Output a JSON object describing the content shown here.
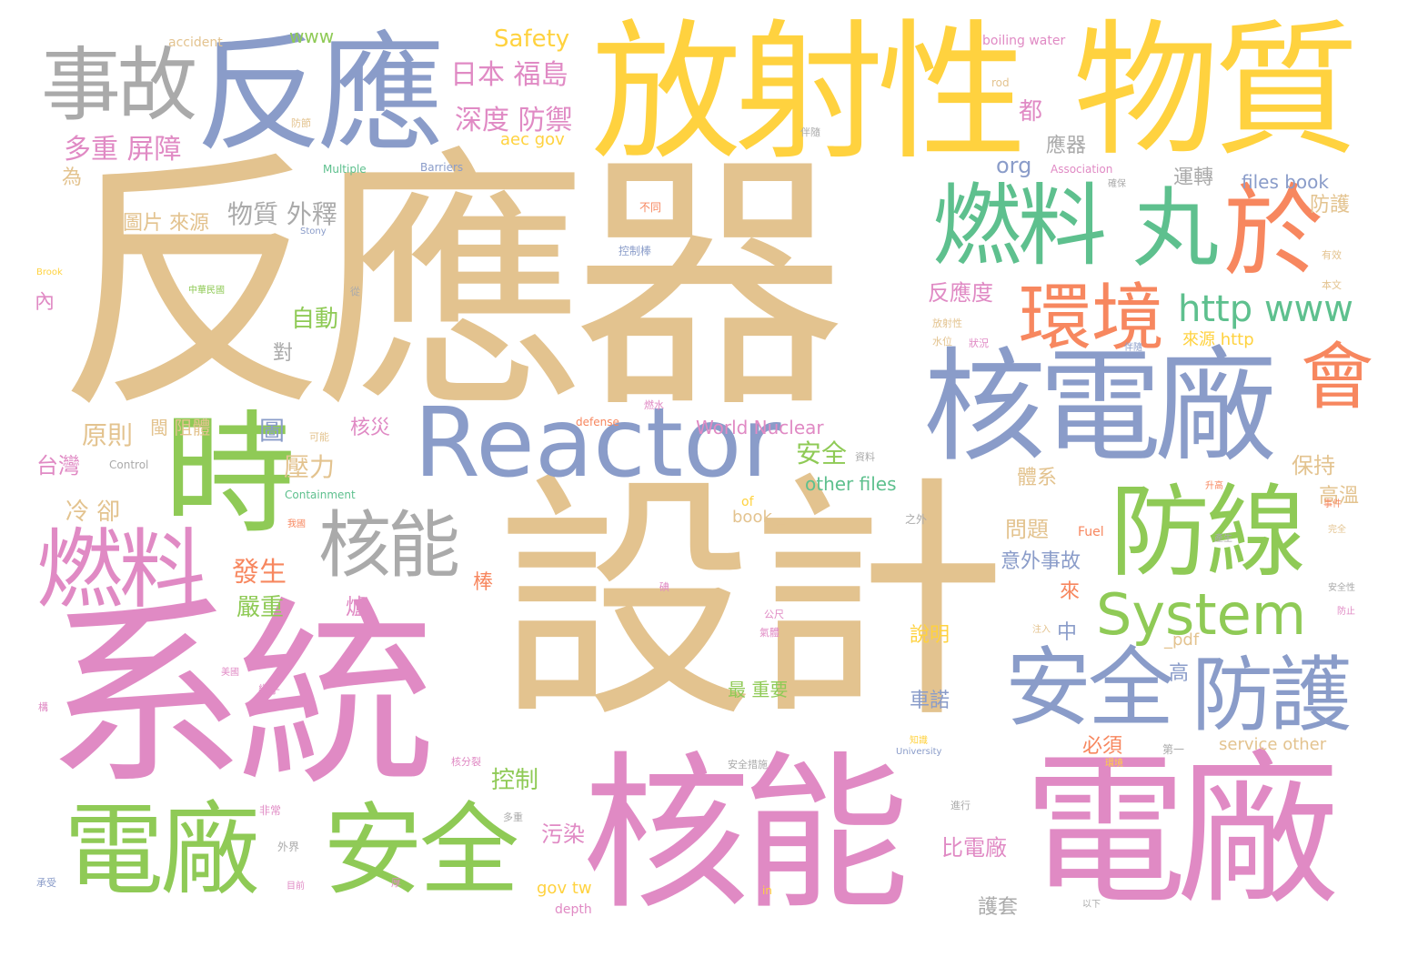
{
  "colors": {
    "tan": "#e3c38f",
    "blue": "#8a9cc9",
    "yellow": "#ffd23f",
    "pink": "#e08ac4",
    "green": "#8fca56",
    "gray": "#aaaaaa",
    "orange": "#f7875f",
    "teal": "#5ec08e"
  },
  "words": [
    {
      "text": "反應器",
      "color": "tan"
    },
    {
      "text": "設計",
      "color": "tan"
    },
    {
      "text": "系統",
      "color": "pink"
    },
    {
      "text": "放射性",
      "color": "yellow"
    },
    {
      "text": "物質",
      "color": "yellow"
    },
    {
      "text": "核能",
      "color": "pink"
    },
    {
      "text": "電廠",
      "color": "pink"
    },
    {
      "text": "反應",
      "color": "blue"
    },
    {
      "text": "核電廠",
      "color": "blue"
    },
    {
      "text": "Reactor",
      "color": "blue"
    },
    {
      "text": "時",
      "color": "green"
    },
    {
      "text": "電廠",
      "color": "green"
    },
    {
      "text": "安全",
      "color": "green"
    },
    {
      "text": "防線",
      "color": "green"
    },
    {
      "text": "燃料",
      "color": "teal"
    },
    {
      "text": "丸",
      "color": "teal"
    },
    {
      "text": "於",
      "color": "orange"
    },
    {
      "text": "燃料",
      "color": "pink"
    },
    {
      "text": "事故",
      "color": "gray"
    },
    {
      "text": "環境",
      "color": "orange"
    },
    {
      "text": "會",
      "color": "orange"
    },
    {
      "text": "安全",
      "color": "blue"
    },
    {
      "text": "防護",
      "color": "blue"
    },
    {
      "text": "System",
      "color": "green"
    },
    {
      "text": "核能",
      "color": "gray"
    },
    {
      "text": "http www",
      "color": "teal"
    },
    {
      "text": "日本 福島",
      "color": "pink"
    },
    {
      "text": "深度 防禦",
      "color": "pink"
    },
    {
      "text": "多重 屏障",
      "color": "pink"
    },
    {
      "text": "Safety",
      "color": "yellow"
    },
    {
      "text": "www",
      "color": "green"
    },
    {
      "text": "accident",
      "color": "tan"
    },
    {
      "text": "物質 外釋",
      "color": "gray"
    },
    {
      "text": "圖片 來源",
      "color": "tan"
    },
    {
      "text": "都",
      "color": "pink"
    },
    {
      "text": "org",
      "color": "blue"
    },
    {
      "text": "aec gov",
      "color": "yellow"
    },
    {
      "text": "應器",
      "color": "gray"
    },
    {
      "text": "運轉",
      "color": "gray"
    },
    {
      "text": "files book",
      "color": "blue"
    },
    {
      "text": "防護",
      "color": "tan"
    },
    {
      "text": "反應度",
      "color": "pink"
    },
    {
      "text": "自動",
      "color": "green"
    },
    {
      "text": "為",
      "color": "tan"
    },
    {
      "text": "壓力",
      "color": "tan"
    },
    {
      "text": "發生",
      "color": "orange"
    },
    {
      "text": "原則",
      "color": "tan"
    },
    {
      "text": "台灣",
      "color": "pink"
    },
    {
      "text": "冷 卻",
      "color": "tan"
    },
    {
      "text": "嚴重",
      "color": "green"
    },
    {
      "text": "核災",
      "color": "pink"
    },
    {
      "text": "圖",
      "color": "blue"
    },
    {
      "text": "安全",
      "color": "green"
    },
    {
      "text": "World Nuclear",
      "color": "pink"
    },
    {
      "text": "other files",
      "color": "teal"
    },
    {
      "text": "體系",
      "color": "tan"
    },
    {
      "text": "問題",
      "color": "tan"
    },
    {
      "text": "意外事故",
      "color": "blue"
    },
    {
      "text": "保持",
      "color": "tan"
    },
    {
      "text": "高溫",
      "color": "tan"
    },
    {
      "text": "來源 http",
      "color": "yellow"
    },
    {
      "text": "控制",
      "color": "green"
    },
    {
      "text": "最 重要",
      "color": "green"
    },
    {
      "text": "book _",
      "color": "tan"
    },
    {
      "text": "比電廠",
      "color": "pink"
    },
    {
      "text": "污染",
      "color": "pink"
    },
    {
      "text": "gov tw",
      "color": "yellow"
    },
    {
      "text": "depth",
      "color": "pink"
    },
    {
      "text": "護套",
      "color": "gray"
    },
    {
      "text": "車諾",
      "color": "blue"
    },
    {
      "text": "說明",
      "color": "yellow"
    },
    {
      "text": "必須",
      "color": "orange"
    },
    {
      "text": "中",
      "color": "blue"
    },
    {
      "text": "來",
      "color": "orange"
    },
    {
      "text": "_pdf",
      "color": "tan"
    },
    {
      "text": "高",
      "color": "blue"
    },
    {
      "text": "service other",
      "color": "tan"
    },
    {
      "text": "Fuel",
      "color": "orange"
    },
    {
      "text": "棒",
      "color": "orange"
    },
    {
      "text": "爐",
      "color": "pink"
    },
    {
      "text": "對",
      "color": "gray"
    },
    {
      "text": "閩 阻體",
      "color": "tan"
    },
    {
      "text": "of",
      "color": "yellow"
    },
    {
      "text": "內",
      "color": "pink"
    },
    {
      "text": "boiling water",
      "color": "pink"
    },
    {
      "text": "rod",
      "color": "tan"
    },
    {
      "text": "Association",
      "color": "pink"
    },
    {
      "text": "Multiple",
      "color": "teal"
    },
    {
      "text": "Barriers",
      "color": "blue"
    },
    {
      "text": "Containment",
      "color": "teal"
    },
    {
      "text": "defense",
      "color": "orange"
    },
    {
      "text": "Control",
      "color": "gray"
    },
    {
      "text": "University",
      "color": "blue"
    },
    {
      "text": "Brook",
      "color": "yellow"
    },
    {
      "text": "Stony",
      "color": "blue"
    },
    {
      "text": "中華民國",
      "color": "green"
    },
    {
      "text": "控制棒",
      "color": "blue"
    },
    {
      "text": "不同",
      "color": "orange"
    },
    {
      "text": "之外",
      "color": "gray"
    },
    {
      "text": "安全措施",
      "color": "gray"
    },
    {
      "text": "以下",
      "color": "gray"
    },
    {
      "text": "in",
      "color": "yellow"
    },
    {
      "text": "外界",
      "color": "gray"
    },
    {
      "text": "多重",
      "color": "gray"
    },
    {
      "text": "本文",
      "color": "tan"
    },
    {
      "text": "有效",
      "color": "tan"
    },
    {
      "text": "安全性",
      "color": "gray"
    },
    {
      "text": "防止",
      "color": "pink"
    },
    {
      "text": "升高",
      "color": "orange"
    },
    {
      "text": "第一",
      "color": "gray"
    },
    {
      "text": "核分裂",
      "color": "pink"
    },
    {
      "text": "非常",
      "color": "pink"
    },
    {
      "text": "幾乎",
      "color": "pink"
    },
    {
      "text": "美國",
      "color": "pink"
    },
    {
      "text": "我國",
      "color": "orange"
    },
    {
      "text": "放射性",
      "color": "tan"
    },
    {
      "text": "水位",
      "color": "tan"
    },
    {
      "text": "狀況",
      "color": "pink"
    },
    {
      "text": "注入",
      "color": "tan"
    },
    {
      "text": "產生",
      "color": "gray"
    },
    {
      "text": "從",
      "color": "gray"
    },
    {
      "text": "可能",
      "color": "tan"
    },
    {
      "text": "燃水",
      "color": "pink"
    },
    {
      "text": "資料",
      "color": "gray"
    },
    {
      "text": "伴隨",
      "color": "gray"
    },
    {
      "text": "防節",
      "color": "tan"
    },
    {
      "text": "伴隨",
      "color": "blue"
    },
    {
      "text": "確保",
      "color": "gray"
    },
    {
      "text": "公尺",
      "color": "pink"
    },
    {
      "text": "氣體",
      "color": "pink"
    },
    {
      "text": "環境",
      "color": "yellow"
    },
    {
      "text": "事件",
      "color": "orange"
    },
    {
      "text": "完全",
      "color": "tan"
    },
    {
      "text": "知識",
      "color": "yellow"
    },
    {
      "text": "進行",
      "color": "gray"
    },
    {
      "text": "目前",
      "color": "pink"
    },
    {
      "text": "承受",
      "color": "blue"
    },
    {
      "text": "厚",
      "color": "pink"
    },
    {
      "text": "碘",
      "color": "pink"
    },
    {
      "text": "構",
      "color": "pink"
    }
  ]
}
